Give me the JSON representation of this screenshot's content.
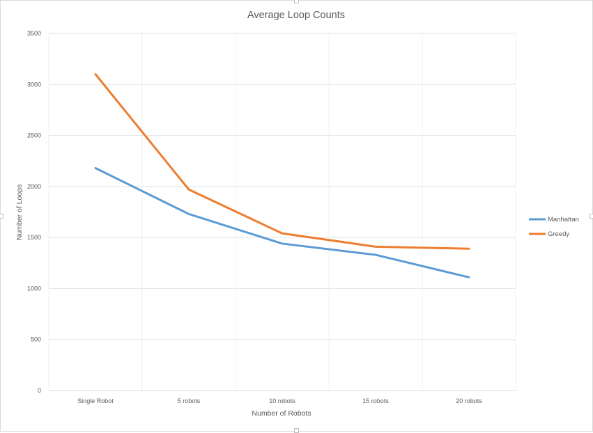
{
  "chart_data": {
    "type": "line",
    "title": "Average Loop Counts",
    "xlabel": "Number of Robots",
    "ylabel": "Number of Loops",
    "categories": [
      "Single Robot",
      "5 robots",
      "10 robots",
      "15 robots",
      "20 robots"
    ],
    "ylim": [
      0,
      3500
    ],
    "yticks": [
      0,
      500,
      1000,
      1500,
      2000,
      2500,
      3000,
      3500
    ],
    "grid": true,
    "legend_position": "right",
    "series": [
      {
        "name": "Manhattan",
        "color": "#5b9bd5",
        "values": [
          2180,
          1730,
          1440,
          1330,
          1110
        ]
      },
      {
        "name": "Greedy",
        "color": "#ed7d31",
        "values": [
          3100,
          1970,
          1540,
          1410,
          1390
        ]
      }
    ]
  }
}
